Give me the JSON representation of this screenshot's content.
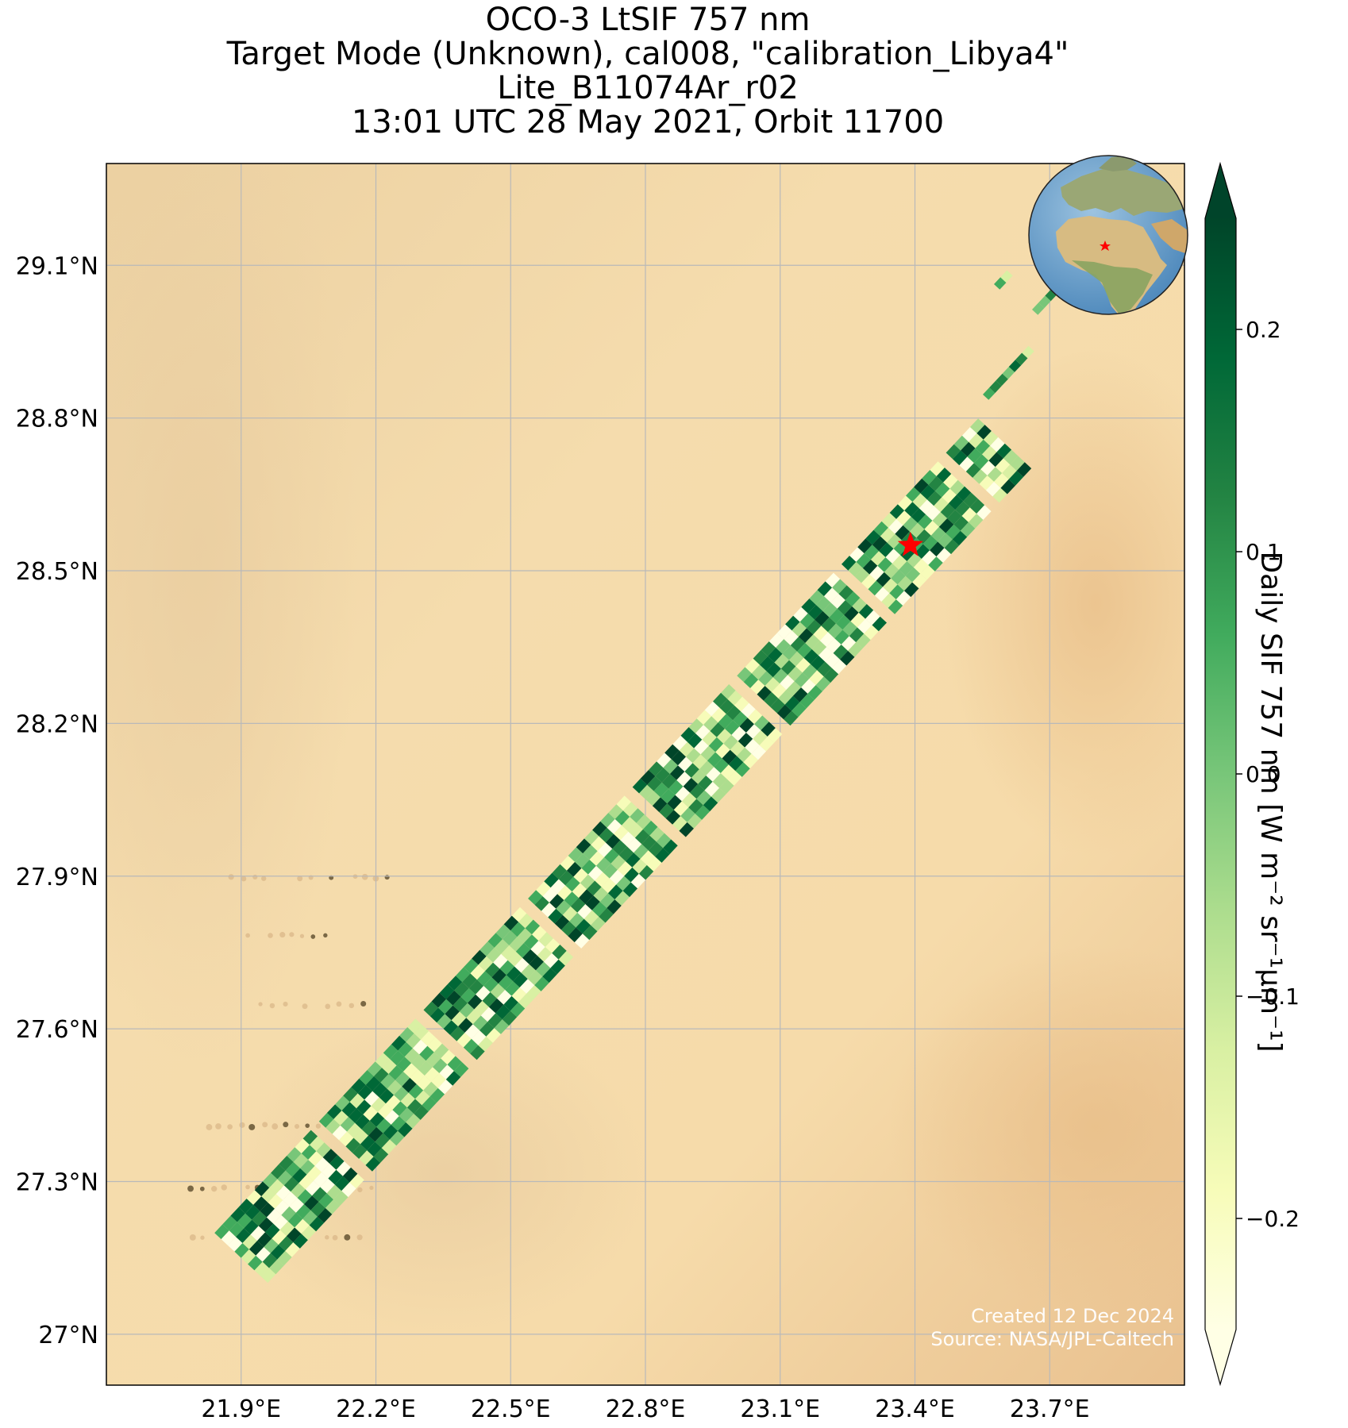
{
  "title": {
    "line1": "OCO-3 LtSIF 757 nm",
    "line2": "Target Mode (Unknown), cal008, \"calibration_Libya4\"",
    "line3": "Lite_B11074Ar_r02",
    "line4": "13:01 UTC 28 May 2021, Orbit 11700"
  },
  "map": {
    "lon_range": [
      21.6,
      24.0
    ],
    "lat_range": [
      26.9,
      29.3
    ],
    "lon_ticks": [
      "21.9°E",
      "22.2°E",
      "22.5°E",
      "22.8°E",
      "23.1°E",
      "23.4°E",
      "23.7°E"
    ],
    "lat_ticks": [
      "29.1°N",
      "28.8°N",
      "28.5°N",
      "28.2°N",
      "27.9°N",
      "27.6°N",
      "27.3°N",
      "27°N"
    ],
    "grid": true,
    "basemap": "desert satellite imagery",
    "swath_start": {
      "lon": 21.9,
      "lat": 27.15
    },
    "swath_end": {
      "lon": 23.6,
      "lat": 28.75
    },
    "target": {
      "lon": 23.39,
      "lat": 28.55,
      "marker": "red-star"
    },
    "inset_globe": {
      "marker": "red-star",
      "position": "top-right"
    }
  },
  "colorbar": {
    "label": "Daily SIF 757 nm [W m⁻² sr⁻¹μm⁻¹]",
    "ticks": [
      "0.2",
      "0.1",
      "0.0",
      "−0.1",
      "−0.2"
    ],
    "range": [
      -0.25,
      0.25
    ],
    "colormap": "YlGn",
    "extend": "both"
  },
  "credits": {
    "created": "Created 12 Dec 2024",
    "source": "Source: NASA/JPL-Caltech"
  },
  "colors": {
    "desert": "#f3d6a5",
    "grid": "#b9b9b9",
    "marker": "#ff0000"
  }
}
